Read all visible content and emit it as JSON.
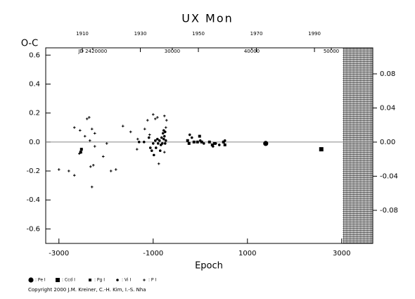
{
  "chart_data": {
    "type": "scatter",
    "title": "UX Mon",
    "ylabel": "O-C",
    "xlabel": "Epoch",
    "copyright": "Copyright 2000 J.M. Kreiner, C.-H. Kim, I.-S. Nha",
    "xlim": [
      -3280,
      3660
    ],
    "xticks": [
      -3000,
      -1000,
      1000,
      3000
    ],
    "x2lim": [
      1897.4,
      2010.1
    ],
    "x2ticks": [
      1910,
      1930,
      1950,
      1970,
      1990
    ],
    "jdlim": [
      2414080,
      2455220
    ],
    "jdticks": [
      {
        "value": 2420000,
        "label": "JD 2420000"
      },
      {
        "value": 2430000,
        "label": "30000"
      },
      {
        "value": 2440000,
        "label": "40000"
      },
      {
        "value": 2450000,
        "label": "50000"
      }
    ],
    "ylim": [
      -0.7,
      0.65
    ],
    "yticks": [
      -0.6,
      -0.4,
      -0.2,
      {
        "value": 0,
        "label": "0.0"
      },
      0.2,
      0.4,
      0.6
    ],
    "y2lim": [
      -0.1188,
      0.1105
    ],
    "y2ticks": [
      -0.08,
      -0.04,
      {
        "value": 0,
        "label": "0.00"
      },
      0.04,
      0.08
    ],
    "series": [
      {
        "name": ": Pe I",
        "color": "#000000",
        "marker": "large-circle",
        "x": [
          1388
        ],
        "values": [
          -0.01
        ]
      },
      {
        "name": ": Ccd I",
        "color": "#000000",
        "marker": "large-square",
        "x": [
          2567
        ],
        "values": [
          -0.05
        ]
      },
      {
        "name": ": Pg I",
        "color": "#000000",
        "marker": "small-square",
        "x": [
          -269,
          -239,
          -134,
          -60,
          -15,
          30,
          194,
          254,
          299,
          492,
          522,
          -2537,
          -2522
        ],
        "values": [
          0.01,
          -0.01,
          0.0,
          0.0,
          0.04,
          0.0,
          0.0,
          -0.02,
          -0.01,
          0.0,
          -0.02,
          -0.07,
          -0.05
        ]
      },
      {
        "name": ": Vi I",
        "color": "#000000",
        "marker": "dot",
        "x": [
          -1299,
          -1194,
          -1090,
          -1060,
          -1030,
          -1000,
          -985,
          -955,
          -940,
          -910,
          -896,
          -866,
          -851,
          -836,
          -821,
          -806,
          -791,
          -776,
          -776,
          -761,
          -746,
          -746,
          -731,
          -224,
          -179,
          0,
          75,
          269,
          328,
          403,
          522
        ],
        "values": [
          0.0,
          0.0,
          0.03,
          -0.04,
          -0.06,
          -0.01,
          -0.09,
          0.01,
          -0.04,
          0.02,
          -0.01,
          0.01,
          -0.06,
          -0.02,
          0.03,
          -0.01,
          0.06,
          0.08,
          0.02,
          0.04,
          0.07,
          -0.01,
          0.01,
          0.05,
          0.03,
          0.01,
          -0.01,
          -0.03,
          -0.01,
          -0.02,
          0.01
        ]
      },
      {
        "name": ": P I",
        "color": "#000000",
        "marker": "plus",
        "x": [
          -3000,
          -2790,
          -2672,
          -2672,
          -2567,
          -2552,
          -2448,
          -2403,
          -2358,
          -2343,
          -2328,
          -2299,
          -2269,
          -2299,
          -2239,
          -2239,
          -2060,
          -1896,
          -1791,
          -1985,
          -1642,
          -1478,
          -1343,
          -1328,
          -1179,
          -1119,
          -1075,
          -1000,
          -955,
          -910,
          -881,
          -761,
          -731,
          -716,
          -761
        ],
        "values": [
          -0.19,
          -0.2,
          -0.23,
          0.1,
          -0.08,
          0.08,
          0.04,
          0.16,
          0.17,
          0.01,
          -0.17,
          0.09,
          -0.16,
          -0.31,
          0.06,
          -0.03,
          -0.1,
          -0.2,
          -0.19,
          -0.01,
          0.11,
          0.07,
          -0.05,
          0.02,
          0.09,
          0.15,
          0.05,
          0.19,
          0.16,
          0.17,
          -0.15,
          0.18,
          0.1,
          0.15,
          -0.07
        ]
      }
    ]
  }
}
